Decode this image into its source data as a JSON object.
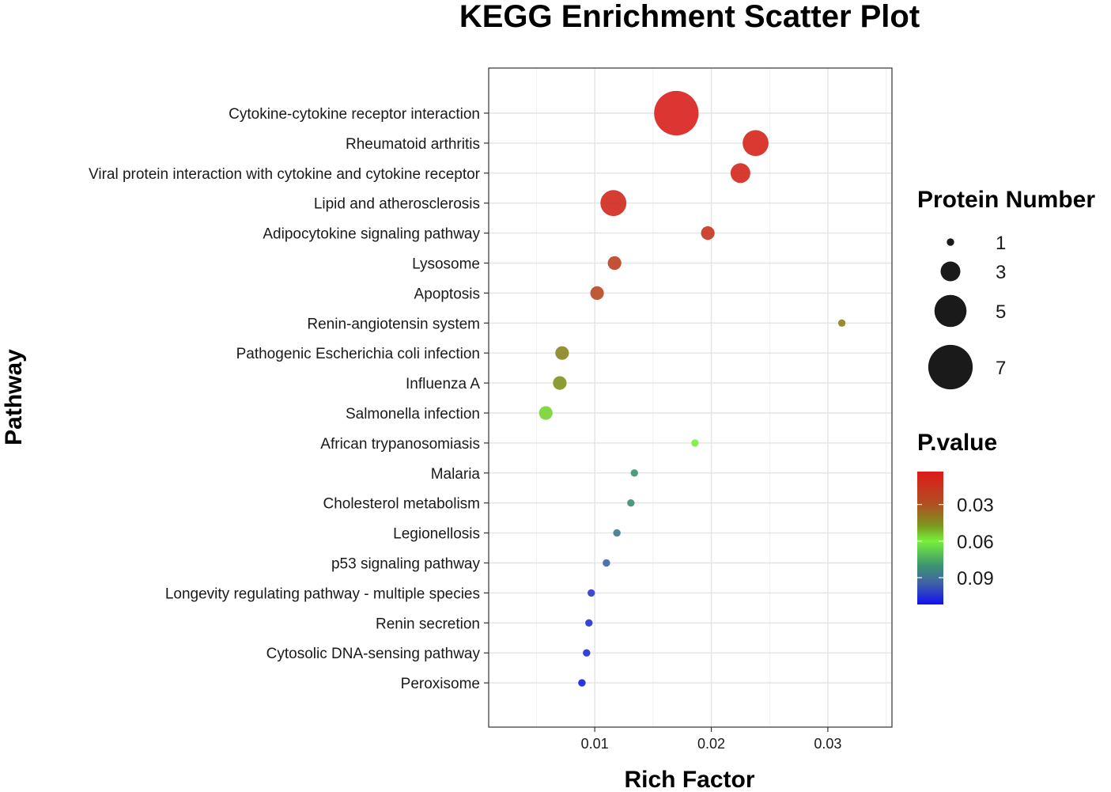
{
  "chart_data": {
    "type": "scatter",
    "title": "KEGG Enrichment Scatter Plot",
    "xlabel": "Rich Factor",
    "ylabel": "Pathway",
    "xlim": [
      0.0009,
      0.0355
    ],
    "xticks": [
      0.01,
      0.02,
      0.03
    ],
    "xtick_labels": [
      "0.01",
      "0.02",
      "0.03"
    ],
    "grid": true,
    "points": [
      {
        "pathway": "Cytokine-cytokine receptor interaction",
        "rich_factor": 0.017,
        "count": 7,
        "pvalue": 0.0055
      },
      {
        "pathway": "Rheumatoid arthritis",
        "rich_factor": 0.0238,
        "count": 4,
        "pvalue": 0.008
      },
      {
        "pathway": "Viral protein interaction with cytokine and cytokine receptor",
        "rich_factor": 0.0225,
        "count": 3,
        "pvalue": 0.009
      },
      {
        "pathway": "Lipid and atherosclerosis",
        "rich_factor": 0.0116,
        "count": 4,
        "pvalue": 0.01
      },
      {
        "pathway": "Adipocytokine signaling pathway",
        "rich_factor": 0.0197,
        "count": 2,
        "pvalue": 0.016
      },
      {
        "pathway": "Lysosome",
        "rich_factor": 0.0117,
        "count": 2,
        "pvalue": 0.022
      },
      {
        "pathway": "Apoptosis",
        "rich_factor": 0.0102,
        "count": 2,
        "pvalue": 0.026
      },
      {
        "pathway": "Renin-angiotensin system",
        "rich_factor": 0.0312,
        "count": 1,
        "pvalue": 0.042
      },
      {
        "pathway": "Pathogenic Escherichia coli infection",
        "rich_factor": 0.0072,
        "count": 2,
        "pvalue": 0.043
      },
      {
        "pathway": "Influenza A",
        "rich_factor": 0.007,
        "count": 2,
        "pvalue": 0.046
      },
      {
        "pathway": "Salmonella infection",
        "rich_factor": 0.0058,
        "count": 2,
        "pvalue": 0.056
      },
      {
        "pathway": "African trypanosomiasis",
        "rich_factor": 0.0186,
        "count": 1,
        "pvalue": 0.06
      },
      {
        "pathway": "Malaria",
        "rich_factor": 0.0134,
        "count": 1,
        "pvalue": 0.08
      },
      {
        "pathway": "Cholesterol metabolism",
        "rich_factor": 0.0131,
        "count": 1,
        "pvalue": 0.082
      },
      {
        "pathway": "Legionellosis",
        "rich_factor": 0.0119,
        "count": 1,
        "pvalue": 0.088
      },
      {
        "pathway": "p53 signaling pathway",
        "rich_factor": 0.011,
        "count": 1,
        "pvalue": 0.095
      },
      {
        "pathway": "Longevity regulating pathway - multiple species",
        "rich_factor": 0.0097,
        "count": 1,
        "pvalue": 0.103
      },
      {
        "pathway": "Renin secretion",
        "rich_factor": 0.0095,
        "count": 1,
        "pvalue": 0.105
      },
      {
        "pathway": "Cytosolic DNA-sensing pathway",
        "rich_factor": 0.0093,
        "count": 1,
        "pvalue": 0.106
      },
      {
        "pathway": "Peroxisome",
        "rich_factor": 0.0089,
        "count": 1,
        "pvalue": 0.11
      }
    ],
    "size_legend": {
      "title": "Protein Number",
      "values": [
        1,
        3,
        5,
        7
      ],
      "labels": [
        "1",
        "3",
        "5",
        "7"
      ]
    },
    "color_legend": {
      "title": "P.value",
      "range": [
        0.003,
        0.112
      ],
      "ticks": [
        0.03,
        0.06,
        0.09
      ],
      "tick_labels": [
        "0.03",
        "0.06",
        "0.09"
      ],
      "colors": [
        "#e41a1c",
        "#7ec93a",
        "#1010f0"
      ],
      "color_stops": [
        {
          "value": 0.003,
          "color": "#dd1a1a"
        },
        {
          "value": 0.03,
          "color": "#b05022"
        },
        {
          "value": 0.048,
          "color": "#7a9a20"
        },
        {
          "value": 0.06,
          "color": "#77f03a"
        },
        {
          "value": 0.08,
          "color": "#3c9470"
        },
        {
          "value": 0.095,
          "color": "#4060a8"
        },
        {
          "value": 0.112,
          "color": "#1010f0"
        }
      ]
    }
  }
}
